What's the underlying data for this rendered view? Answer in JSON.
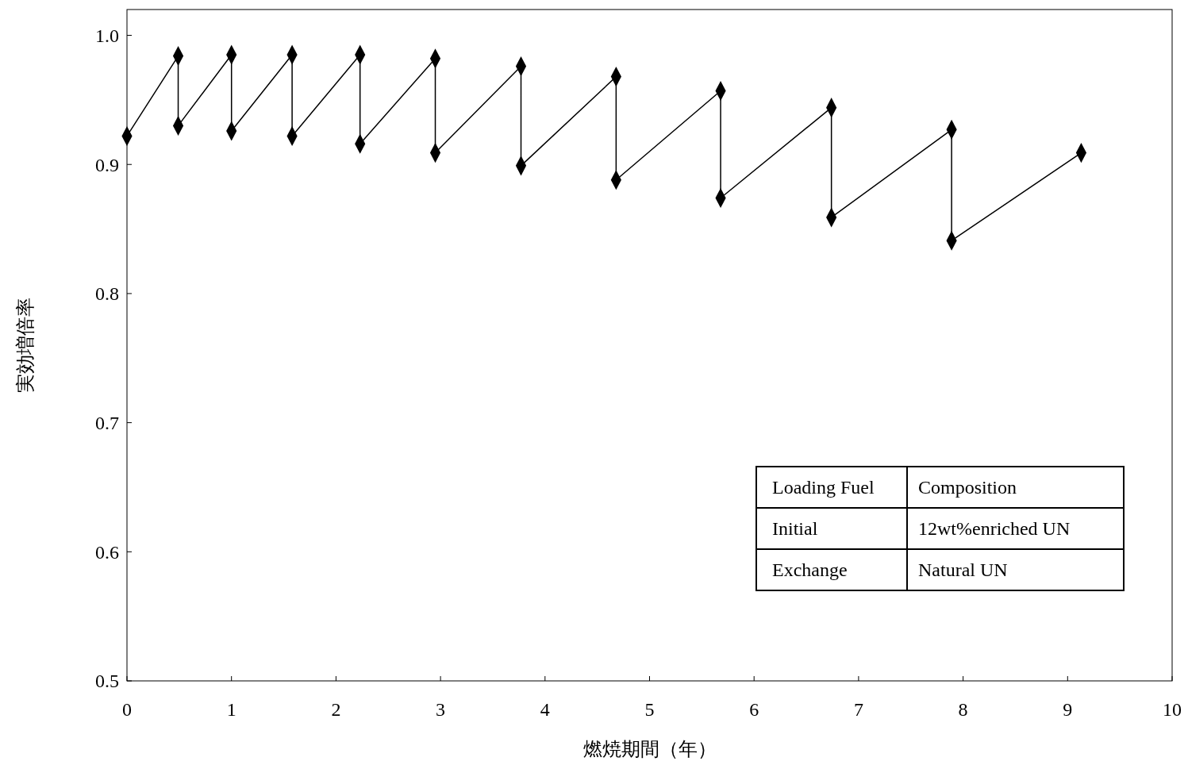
{
  "chart_data": {
    "type": "line",
    "xlabel": "燃焼期間（年）",
    "ylabel": "実効増倍率",
    "xlim": [
      0,
      10
    ],
    "ylim": [
      0.5,
      1.02
    ],
    "xticks": [
      0,
      1,
      2,
      3,
      4,
      5,
      6,
      7,
      8,
      9,
      10
    ],
    "yticks": [
      0.5,
      0.6,
      0.7,
      0.8,
      0.9,
      {
        "value": 1,
        "label": "1.0"
      }
    ],
    "grid": false,
    "marker": "diamond",
    "line_style": "solid",
    "series": [
      {
        "color": "#000000",
        "x": [
          0,
          0.49,
          0.49,
          1.0,
          1.0,
          1.58,
          1.58,
          2.23,
          2.23,
          2.95,
          2.95,
          3.77,
          3.77,
          4.68,
          4.68,
          5.68,
          5.68,
          6.74,
          6.74,
          7.89,
          7.89,
          9.13
        ],
        "values": [
          0.922,
          0.984,
          0.93,
          0.985,
          0.926,
          0.985,
          0.922,
          0.985,
          0.916,
          0.982,
          0.909,
          0.976,
          0.899,
          0.968,
          0.888,
          0.957,
          0.874,
          0.944,
          0.859,
          0.927,
          0.841,
          0.909
        ]
      }
    ],
    "annotations": [
      "Loading Fuel",
      "Composition",
      "Initial",
      "12wt%enriched UN",
      "Exchange",
      "Natural UN"
    ]
  }
}
